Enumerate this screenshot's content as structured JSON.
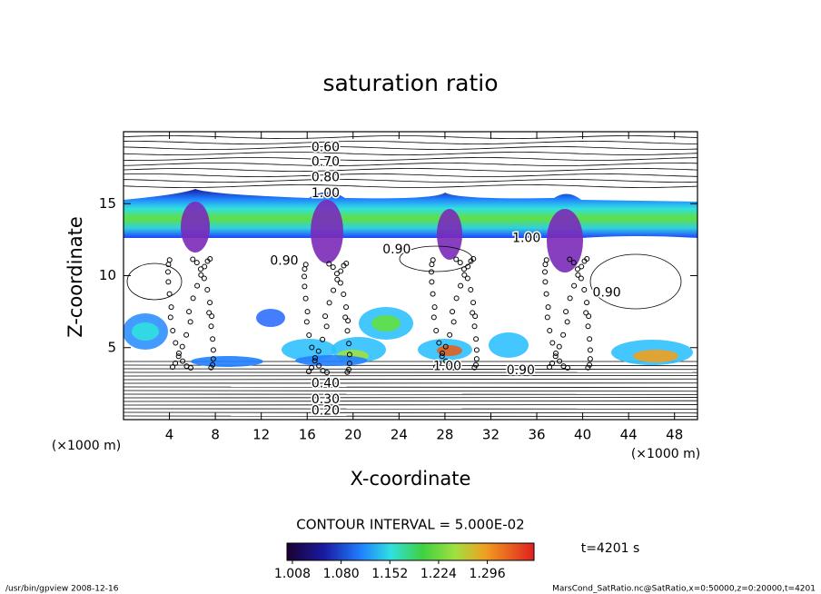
{
  "chart_data": {
    "type": "contour",
    "title": "saturation ratio",
    "x_label": "X-coordinate",
    "y_label": "Z-coordinate",
    "x_unit": "(×1000 m)",
    "y_unit": "(×1000 m)",
    "xlim": [
      0,
      50
    ],
    "xticks": [
      4,
      8,
      12,
      16,
      20,
      24,
      28,
      32,
      36,
      40,
      44,
      48
    ],
    "ylim": [
      0,
      20
    ],
    "yticks": [
      5,
      10,
      15
    ],
    "contour_interval": "CONTOUR INTERVAL = 5.000E-02",
    "time": "t=4201 s",
    "colorbar": {
      "clim": [
        1.0,
        1.365
      ],
      "ticks": [
        1.008,
        {
          "value": 1.08,
          "label": "1.080"
        },
        1.152,
        1.224,
        1.296
      ]
    },
    "contour_labels": [
      {
        "text": "0.60",
        "x": 17.6,
        "y": 18.9
      },
      {
        "text": "0.70",
        "x": 17.6,
        "y": 17.9
      },
      {
        "text": "0.80",
        "x": 17.6,
        "y": 16.8
      },
      {
        "text": "1.00",
        "x": 17.6,
        "y": 15.7
      },
      {
        "text": "0.90",
        "x": 14.0,
        "y": 11.0
      },
      {
        "text": "0.90",
        "x": 23.8,
        "y": 11.8
      },
      {
        "text": "1.00",
        "x": 35.1,
        "y": 12.6
      },
      {
        "text": "0.90",
        "x": 42.1,
        "y": 8.8
      },
      {
        "text": "1.00",
        "x": 28.2,
        "y": 3.7
      },
      {
        "text": "0.90",
        "x": 34.6,
        "y": 3.4
      },
      {
        "text": "0.40",
        "x": 17.6,
        "y": 2.5
      },
      {
        "text": "0.30",
        "x": 17.6,
        "y": 1.4
      },
      {
        "text": "0.20",
        "x": 17.6,
        "y": 0.6
      }
    ],
    "footer_left": "/usr/bin/gpview   2008-12-16",
    "footer_right": "MarsCond_SatRatio.nc@SatRatio,x=0:50000,z=0:20000,t=4201"
  }
}
